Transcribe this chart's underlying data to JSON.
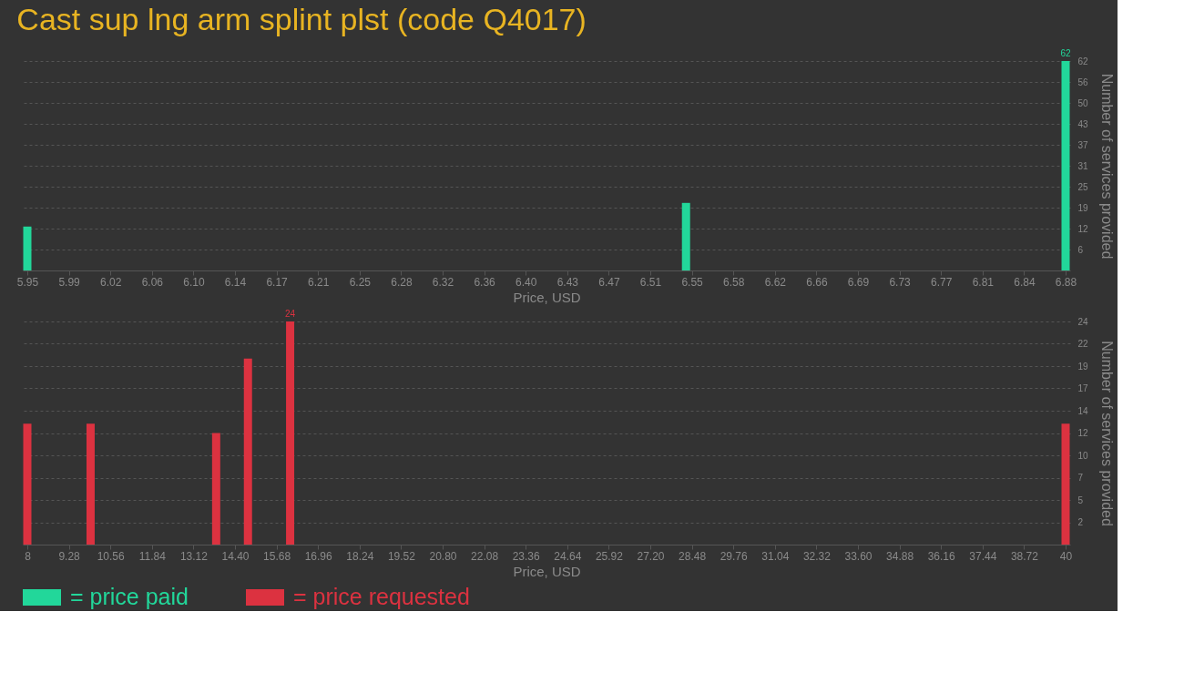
{
  "chart_data": [
    {
      "type": "bar",
      "title": "Cast sup lng arm splint plst (code Q4017)",
      "xlabel": "Price, USD",
      "ylabel": "Number of services provided",
      "grid": "y",
      "legend": "bottom left",
      "x": [
        5.95,
        6.54,
        6.88
      ],
      "series": [
        {
          "name": "= price paid",
          "color": "#22d79a",
          "values": [
            13,
            20,
            62
          ],
          "value_labels": [
            null,
            null,
            "62"
          ]
        }
      ],
      "xlim": [
        5.95,
        6.88
      ],
      "xticks": [
        {
          "value": 5.95,
          "label": "5.95"
        },
        {
          "value": 5.9872,
          "label": "5.99"
        },
        {
          "value": 6.0244,
          "label": "6.02"
        },
        {
          "value": 6.0616,
          "label": "6.06"
        },
        {
          "value": 6.0988,
          "label": "6.10"
        },
        {
          "value": 6.136,
          "label": "6.14"
        },
        {
          "value": 6.1732,
          "label": "6.17"
        },
        {
          "value": 6.2104,
          "label": "6.21"
        },
        {
          "value": 6.2476,
          "label": "6.25"
        },
        {
          "value": 6.2848,
          "label": "6.28"
        },
        {
          "value": 6.322,
          "label": "6.32"
        },
        {
          "value": 6.3592,
          "label": "6.36"
        },
        {
          "value": 6.3964,
          "label": "6.40"
        },
        {
          "value": 6.4336,
          "label": "6.43"
        },
        {
          "value": 6.4708,
          "label": "6.47"
        },
        {
          "value": 6.508,
          "label": "6.51"
        },
        {
          "value": 6.5452,
          "label": "6.55"
        },
        {
          "value": 6.5824,
          "label": "6.58"
        },
        {
          "value": 6.6196,
          "label": "6.62"
        },
        {
          "value": 6.6568,
          "label": "6.66"
        },
        {
          "value": 6.694,
          "label": "6.69"
        },
        {
          "value": 6.7312,
          "label": "6.73"
        },
        {
          "value": 6.7684,
          "label": "6.77"
        },
        {
          "value": 6.8056,
          "label": "6.81"
        },
        {
          "value": 6.8428,
          "label": "6.84"
        },
        {
          "value": 6.88,
          "label": "6.88"
        }
      ],
      "ylim": [
        0,
        62
      ],
      "yticks": [
        {
          "value": 6.2,
          "label": "6"
        },
        {
          "value": 12.4,
          "label": "12"
        },
        {
          "value": 18.6,
          "label": "19"
        },
        {
          "value": 24.8,
          "label": "25"
        },
        {
          "value": 31,
          "label": "31"
        },
        {
          "value": 37.2,
          "label": "37"
        },
        {
          "value": 43.4,
          "label": "43"
        },
        {
          "value": 49.6,
          "label": "50"
        },
        {
          "value": 55.8,
          "label": "56"
        },
        {
          "value": 62,
          "label": "62"
        }
      ]
    },
    {
      "type": "bar",
      "xlabel": "Price, USD",
      "ylabel": "Number of services provided",
      "grid": "y",
      "legend": "bottom left",
      "x": [
        8,
        9.95,
        13.82,
        14.8,
        16.1,
        40
      ],
      "series": [
        {
          "name": "= price requested",
          "color": "#dc3240",
          "values": [
            13,
            13,
            12,
            20,
            24,
            13
          ],
          "value_labels": [
            null,
            null,
            null,
            null,
            "24",
            null
          ]
        }
      ],
      "xlim": [
        8,
        40
      ],
      "xticks": [
        {
          "value": 8,
          "label": "8"
        },
        {
          "value": 9.28,
          "label": "9.28"
        },
        {
          "value": 10.56,
          "label": "10.56"
        },
        {
          "value": 11.84,
          "label": "11.84"
        },
        {
          "value": 13.12,
          "label": "13.12"
        },
        {
          "value": 14.4,
          "label": "14.40"
        },
        {
          "value": 15.68,
          "label": "15.68"
        },
        {
          "value": 16.96,
          "label": "16.96"
        },
        {
          "value": 18.24,
          "label": "18.24"
        },
        {
          "value": 19.52,
          "label": "19.52"
        },
        {
          "value": 20.8,
          "label": "20.80"
        },
        {
          "value": 22.08,
          "label": "22.08"
        },
        {
          "value": 23.36,
          "label": "23.36"
        },
        {
          "value": 24.64,
          "label": "24.64"
        },
        {
          "value": 25.92,
          "label": "25.92"
        },
        {
          "value": 27.2,
          "label": "27.20"
        },
        {
          "value": 28.48,
          "label": "28.48"
        },
        {
          "value": 29.76,
          "label": "29.76"
        },
        {
          "value": 31.04,
          "label": "31.04"
        },
        {
          "value": 32.32,
          "label": "32.32"
        },
        {
          "value": 33.6,
          "label": "33.60"
        },
        {
          "value": 34.88,
          "label": "34.88"
        },
        {
          "value": 36.16,
          "label": "36.16"
        },
        {
          "value": 37.44,
          "label": "37.44"
        },
        {
          "value": 38.72,
          "label": "38.72"
        },
        {
          "value": 40,
          "label": "40"
        }
      ],
      "ylim": [
        0,
        24
      ],
      "yticks": [
        {
          "value": 2.4,
          "label": "2"
        },
        {
          "value": 4.8,
          "label": "5"
        },
        {
          "value": 7.2,
          "label": "7"
        },
        {
          "value": 9.6,
          "label": "10"
        },
        {
          "value": 12,
          "label": "12"
        },
        {
          "value": 14.4,
          "label": "14"
        },
        {
          "value": 16.8,
          "label": "17"
        },
        {
          "value": 19.2,
          "label": "19"
        },
        {
          "value": 21.6,
          "label": "22"
        },
        {
          "value": 24,
          "label": "24"
        }
      ]
    }
  ]
}
